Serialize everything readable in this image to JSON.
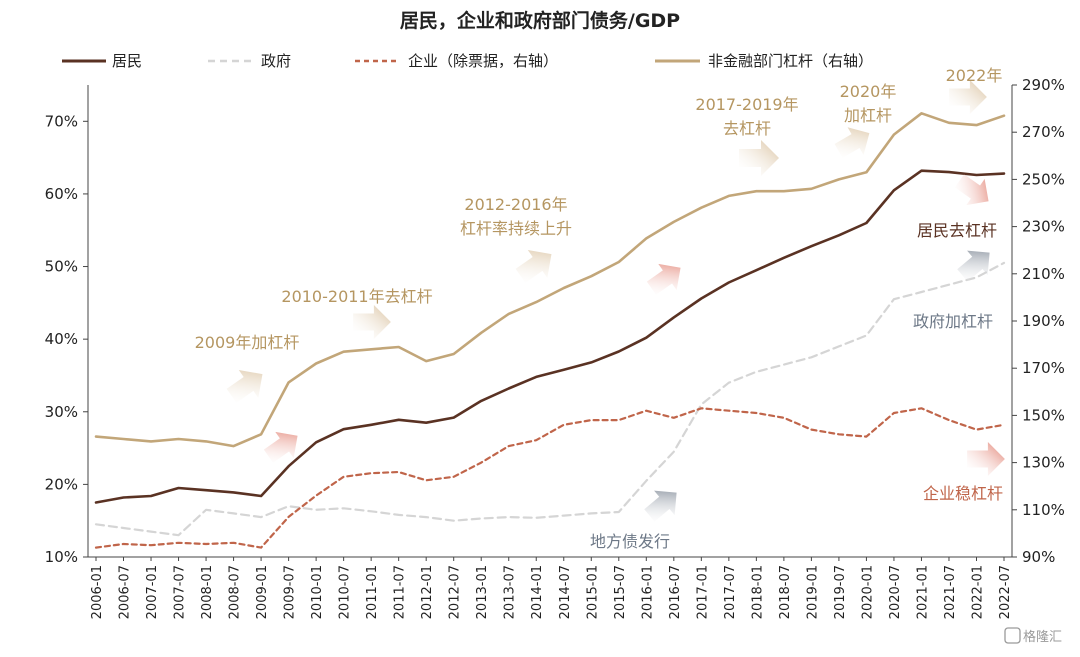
{
  "chart_data": {
    "type": "line",
    "title": "居民，企业和政府部门债务/GDP",
    "x_ticks": [
      "2006-01",
      "2006-07",
      "2007-01",
      "2007-07",
      "2008-01",
      "2008-07",
      "2009-01",
      "2009-07",
      "2010-01",
      "2010-07",
      "2011-01",
      "2011-07",
      "2012-01",
      "2012-07",
      "2013-01",
      "2013-07",
      "2014-01",
      "2014-07",
      "2015-01",
      "2015-07",
      "2016-01",
      "2016-07",
      "2017-01",
      "2017-07",
      "2018-01",
      "2018-07",
      "2019-01",
      "2019-07",
      "2020-01",
      "2020-07",
      "2021-01",
      "2021-07",
      "2022-01",
      "2022-07"
    ],
    "y_left": {
      "min": 10,
      "max": 75,
      "ticks": [
        "10%",
        "20%",
        "30%",
        "40%",
        "50%",
        "60%",
        "70%"
      ]
    },
    "y_right": {
      "min": 90,
      "max": 290,
      "ticks": [
        "90%",
        "110%",
        "130%",
        "150%",
        "170%",
        "190%",
        "210%",
        "230%",
        "250%",
        "270%",
        "290%"
      ]
    },
    "grid": false,
    "legend_position": "top",
    "series": [
      {
        "name": "居民",
        "axis": "left",
        "style": "solid",
        "color": "#5a3223",
        "points": [
          [
            "2006-01",
            17.5
          ],
          [
            "2006-07",
            18.2
          ],
          [
            "2007-01",
            18.4
          ],
          [
            "2007-07",
            19.5
          ],
          [
            "2008-01",
            19.2
          ],
          [
            "2008-07",
            18.9
          ],
          [
            "2009-01",
            18.4
          ],
          [
            "2009-07",
            22.5
          ],
          [
            "2010-01",
            25.8
          ],
          [
            "2010-07",
            27.6
          ],
          [
            "2011-01",
            28.2
          ],
          [
            "2011-07",
            28.9
          ],
          [
            "2012-01",
            28.5
          ],
          [
            "2012-07",
            29.2
          ],
          [
            "2013-01",
            31.5
          ],
          [
            "2013-07",
            33.2
          ],
          [
            "2014-01",
            34.8
          ],
          [
            "2014-07",
            35.8
          ],
          [
            "2015-01",
            36.8
          ],
          [
            "2015-07",
            38.3
          ],
          [
            "2016-01",
            40.2
          ],
          [
            "2016-07",
            43.0
          ],
          [
            "2017-01",
            45.6
          ],
          [
            "2017-07",
            47.8
          ],
          [
            "2018-01",
            49.5
          ],
          [
            "2018-07",
            51.2
          ],
          [
            "2019-01",
            52.8
          ],
          [
            "2019-07",
            54.3
          ],
          [
            "2020-01",
            56.0
          ],
          [
            "2020-07",
            60.5
          ],
          [
            "2021-01",
            63.2
          ],
          [
            "2021-07",
            63.0
          ],
          [
            "2022-01",
            62.6
          ],
          [
            "2022-07",
            62.8
          ]
        ]
      },
      {
        "name": "政府",
        "axis": "left",
        "style": "dashed",
        "color": "#d5d5d5",
        "points": [
          [
            "2006-01",
            14.5
          ],
          [
            "2006-07",
            14.0
          ],
          [
            "2007-01",
            13.5
          ],
          [
            "2007-07",
            13.0
          ],
          [
            "2008-01",
            16.5
          ],
          [
            "2008-07",
            16.0
          ],
          [
            "2009-01",
            15.5
          ],
          [
            "2009-07",
            17.0
          ],
          [
            "2010-01",
            16.5
          ],
          [
            "2010-07",
            16.7
          ],
          [
            "2011-01",
            16.3
          ],
          [
            "2011-07",
            15.8
          ],
          [
            "2012-01",
            15.5
          ],
          [
            "2012-07",
            15.0
          ],
          [
            "2013-01",
            15.3
          ],
          [
            "2013-07",
            15.5
          ],
          [
            "2014-01",
            15.4
          ],
          [
            "2014-07",
            15.7
          ],
          [
            "2015-01",
            16.0
          ],
          [
            "2015-07",
            16.2
          ],
          [
            "2016-01",
            20.5
          ],
          [
            "2016-07",
            24.5
          ],
          [
            "2017-01",
            31.0
          ],
          [
            "2017-07",
            34.0
          ],
          [
            "2018-01",
            35.5
          ],
          [
            "2018-07",
            36.5
          ],
          [
            "2019-01",
            37.5
          ],
          [
            "2019-07",
            39.0
          ],
          [
            "2020-01",
            40.5
          ],
          [
            "2020-07",
            45.5
          ],
          [
            "2021-01",
            46.5
          ],
          [
            "2021-07",
            47.5
          ],
          [
            "2022-01",
            48.5
          ],
          [
            "2022-07",
            50.5
          ]
        ]
      },
      {
        "name": "企业（除票据，右轴）",
        "axis": "right",
        "style": "dashed",
        "color": "#c0654a",
        "points": [
          [
            "2006-01",
            94
          ],
          [
            "2006-07",
            95.5
          ],
          [
            "2007-01",
            95
          ],
          [
            "2007-07",
            96
          ],
          [
            "2008-01",
            95.5
          ],
          [
            "2008-07",
            96
          ],
          [
            "2009-01",
            94
          ],
          [
            "2009-07",
            107
          ],
          [
            "2010-01",
            116
          ],
          [
            "2010-07",
            124
          ],
          [
            "2011-01",
            125.5
          ],
          [
            "2011-07",
            126
          ],
          [
            "2012-01",
            122.5
          ],
          [
            "2012-07",
            124
          ],
          [
            "2013-01",
            130
          ],
          [
            "2013-07",
            137
          ],
          [
            "2014-01",
            139.5
          ],
          [
            "2014-07",
            146
          ],
          [
            "2015-01",
            148
          ],
          [
            "2015-07",
            148
          ],
          [
            "2016-01",
            152
          ],
          [
            "2016-07",
            149
          ],
          [
            "2017-01",
            153
          ],
          [
            "2017-07",
            152
          ],
          [
            "2018-01",
            151
          ],
          [
            "2018-07",
            149
          ],
          [
            "2019-01",
            144
          ],
          [
            "2019-07",
            142
          ],
          [
            "2020-01",
            141
          ],
          [
            "2020-07",
            151
          ],
          [
            "2021-01",
            153
          ],
          [
            "2021-07",
            148
          ],
          [
            "2022-01",
            144
          ],
          [
            "2022-07",
            146
          ]
        ]
      },
      {
        "name": "非金融部门杠杆（右轴）",
        "axis": "right",
        "style": "solid",
        "color": "#c2a679",
        "points": [
          [
            "2006-01",
            141
          ],
          [
            "2006-07",
            140
          ],
          [
            "2007-01",
            139
          ],
          [
            "2007-07",
            140
          ],
          [
            "2008-01",
            139
          ],
          [
            "2008-07",
            137
          ],
          [
            "2009-01",
            142
          ],
          [
            "2009-07",
            164
          ],
          [
            "2010-01",
            172
          ],
          [
            "2010-07",
            177
          ],
          [
            "2011-01",
            178
          ],
          [
            "2011-07",
            179
          ],
          [
            "2012-01",
            173
          ],
          [
            "2012-07",
            176
          ],
          [
            "2013-01",
            185
          ],
          [
            "2013-07",
            193
          ],
          [
            "2014-01",
            198
          ],
          [
            "2014-07",
            204
          ],
          [
            "2015-01",
            209
          ],
          [
            "2015-07",
            215
          ],
          [
            "2016-01",
            225
          ],
          [
            "2016-07",
            232
          ],
          [
            "2017-01",
            238
          ],
          [
            "2017-07",
            243
          ],
          [
            "2018-01",
            245
          ],
          [
            "2018-07",
            245
          ],
          [
            "2019-01",
            246
          ],
          [
            "2019-07",
            250
          ],
          [
            "2020-01",
            253
          ],
          [
            "2020-07",
            269
          ],
          [
            "2021-01",
            278
          ],
          [
            "2021-07",
            274
          ],
          [
            "2022-01",
            273
          ],
          [
            "2022-07",
            277
          ]
        ]
      }
    ],
    "annotations": [
      {
        "text": "2009年加杠杆",
        "color": "#c2a679"
      },
      {
        "text": "2010-2011年去杠杆",
        "color": "#c2a679"
      },
      {
        "text": "2012-2016年",
        "color": "#c2a679"
      },
      {
        "text": "杠杆率持续上升",
        "color": "#c2a679"
      },
      {
        "text": "2017-2019年",
        "color": "#c2a679"
      },
      {
        "text": "去杠杆",
        "color": "#c2a679"
      },
      {
        "text": "2020年",
        "color": "#c2a679"
      },
      {
        "text": "加杠杆",
        "color": "#c2a679"
      },
      {
        "text": "2022年",
        "color": "#c2a679"
      },
      {
        "text": "居民去杠杆",
        "color": "#5a3223"
      },
      {
        "text": "政府加杠杆",
        "color": "#6d7887"
      },
      {
        "text": "企业稳杠杆",
        "color": "#c0654a"
      },
      {
        "text": "地方债发行",
        "color": "#6d7887"
      }
    ],
    "watermark": "格隆汇"
  }
}
